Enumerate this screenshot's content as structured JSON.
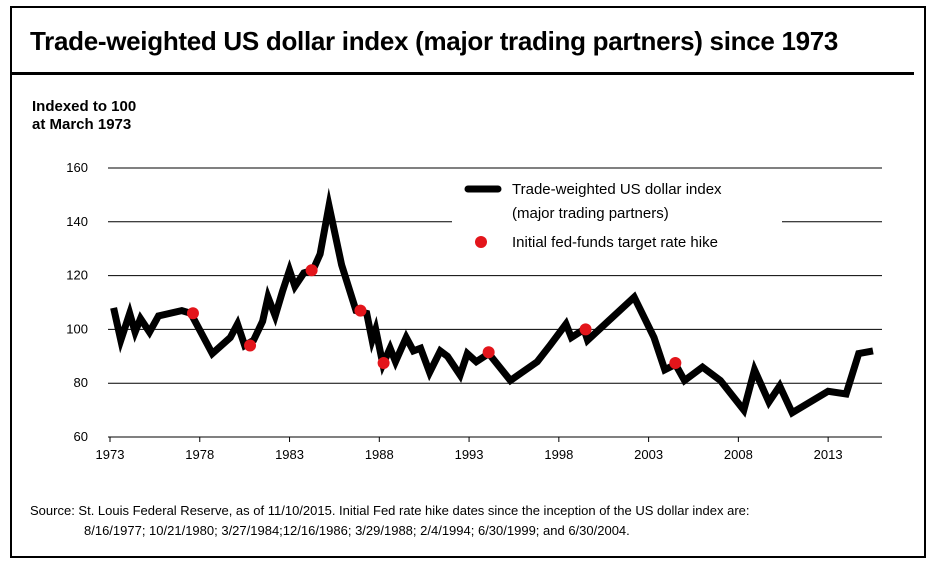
{
  "title": "Trade-weighted US dollar index (major trading partners) since 1973",
  "units_line1": "Indexed to 100",
  "units_line2": "at March 1973",
  "source_line1": "Source: St. Louis Federal Reserve, as of 11/10/2015. Initial Fed rate hike dates since the inception of the US dollar index are:",
  "source_line2": "8/16/1977; 10/21/1980; 3/27/1984;12/16/1986; 3/29/1988; 2/4/1994; 6/30/1999; and 6/30/2004.",
  "colors": {
    "line": "#000000",
    "hike": "#e3151b",
    "grid": "#000000"
  },
  "chart_data": {
    "type": "line",
    "title": "Trade-weighted US dollar index (major trading partners) since 1973",
    "ylabel": "Indexed to 100 at March 1973",
    "xlabel": "",
    "xlim": [
      1973,
      2016
    ],
    "ylim": [
      60,
      160
    ],
    "grid": true,
    "legend_placement": "top-right",
    "x_ticks": [
      1973,
      1978,
      1983,
      1988,
      1993,
      1998,
      2003,
      2008,
      2013
    ],
    "x_tick_labels": [
      "1973",
      "1978",
      "1983",
      "1988",
      "1993",
      "1998",
      "2003",
      "2008",
      "2013"
    ],
    "y_ticks": [
      60,
      80,
      100,
      120,
      140,
      160
    ],
    "y_tick_labels": [
      "60",
      "80",
      "100",
      "120",
      "140",
      "160"
    ],
    "series": [
      {
        "name": "Trade-weighted US dollar index (major trading partners)",
        "name_line1": "Trade-weighted US dollar index",
        "name_line2": "(major trading partners)",
        "points": [
          [
            1973.2,
            108
          ],
          [
            1973.6,
            96
          ],
          [
            1974.1,
            106
          ],
          [
            1974.4,
            99
          ],
          [
            1974.7,
            104
          ],
          [
            1975.2,
            99
          ],
          [
            1975.7,
            105
          ],
          [
            1977.0,
            107
          ],
          [
            1977.5,
            106
          ],
          [
            1978.7,
            91
          ],
          [
            1979.7,
            97
          ],
          [
            1980.1,
            102
          ],
          [
            1980.5,
            94
          ],
          [
            1981.0,
            96
          ],
          [
            1981.5,
            103
          ],
          [
            1981.8,
            112
          ],
          [
            1982.2,
            105
          ],
          [
            1982.6,
            114
          ],
          [
            1983.0,
            122
          ],
          [
            1983.3,
            116
          ],
          [
            1983.8,
            121
          ],
          [
            1984.3,
            122
          ],
          [
            1984.7,
            128
          ],
          [
            1985.2,
            146
          ],
          [
            1985.9,
            124
          ],
          [
            1986.7,
            107
          ],
          [
            1987.3,
            106
          ],
          [
            1987.6,
            96
          ],
          [
            1987.8,
            100
          ],
          [
            1988.2,
            87
          ],
          [
            1988.6,
            93
          ],
          [
            1988.9,
            88
          ],
          [
            1989.5,
            97
          ],
          [
            1989.9,
            92
          ],
          [
            1990.3,
            93
          ],
          [
            1990.8,
            84
          ],
          [
            1991.4,
            92
          ],
          [
            1991.8,
            90
          ],
          [
            1992.5,
            83
          ],
          [
            1992.9,
            91
          ],
          [
            1993.4,
            88
          ],
          [
            1994.1,
            91
          ],
          [
            1995.3,
            81
          ],
          [
            1996.8,
            88
          ],
          [
            1997.5,
            94
          ],
          [
            1998.4,
            102
          ],
          [
            1998.7,
            97
          ],
          [
            1999.4,
            100
          ],
          [
            1999.6,
            96
          ],
          [
            2002.2,
            112
          ],
          [
            2003.3,
            97
          ],
          [
            2003.9,
            85
          ],
          [
            2004.5,
            87
          ],
          [
            2005.0,
            81
          ],
          [
            2006.0,
            86
          ],
          [
            2007.0,
            81
          ],
          [
            2008.3,
            70
          ],
          [
            2008.9,
            85
          ],
          [
            2009.7,
            73
          ],
          [
            2010.3,
            79
          ],
          [
            2011.0,
            69
          ],
          [
            2013.0,
            77
          ],
          [
            2014.0,
            76
          ],
          [
            2014.7,
            91
          ],
          [
            2015.5,
            92
          ]
        ]
      },
      {
        "name": "Initial fed-funds target rate hike",
        "points": [
          [
            1977.62,
            106
          ],
          [
            1980.8,
            94
          ],
          [
            1984.23,
            122
          ],
          [
            1986.95,
            107
          ],
          [
            1988.24,
            87.5
          ],
          [
            1994.09,
            91.5
          ],
          [
            1999.49,
            100
          ],
          [
            2004.49,
            87.5
          ]
        ]
      }
    ]
  }
}
